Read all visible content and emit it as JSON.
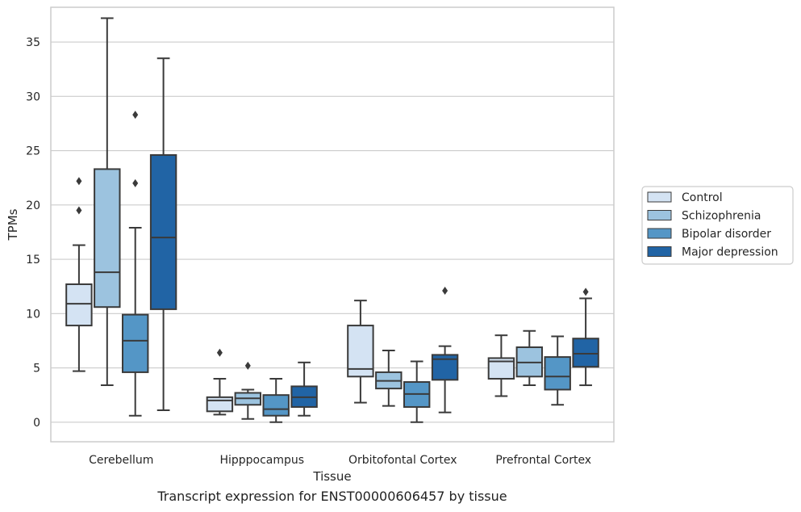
{
  "caption": "Transcript expression for ENST00000606457 by tissue",
  "chart_data": {
    "type": "box",
    "xlabel": "Tissue",
    "ylabel": "TPMs",
    "ylim": [
      -1.8,
      38.2
    ],
    "yticks": [
      0,
      5,
      10,
      15,
      20,
      25,
      30,
      35
    ],
    "grid": "horizontal",
    "legend_position": "right",
    "categories": [
      "Cerebellum",
      "Hipppocampus",
      "Orbitofontal Cortex",
      "Prefrontal Cortex"
    ],
    "series": [
      {
        "name": "Control",
        "color": "#d4e3f3",
        "boxes": [
          {
            "min": 4.7,
            "q1": 8.9,
            "median": 10.9,
            "q3": 12.7,
            "max": 16.3,
            "outliers": [
              19.5,
              22.2
            ]
          },
          {
            "min": 0.7,
            "q1": 1.0,
            "median": 2.0,
            "q3": 2.3,
            "max": 4.0,
            "outliers": [
              6.4
            ]
          },
          {
            "min": 1.8,
            "q1": 4.2,
            "median": 4.9,
            "q3": 8.9,
            "max": 11.2,
            "outliers": []
          },
          {
            "min": 2.4,
            "q1": 4.0,
            "median": 5.6,
            "q3": 5.9,
            "max": 8.0,
            "outliers": []
          }
        ]
      },
      {
        "name": "Schizophrenia",
        "color": "#9cc3df",
        "boxes": [
          {
            "min": 3.4,
            "q1": 10.6,
            "median": 13.8,
            "q3": 23.3,
            "max": 37.2,
            "outliers": []
          },
          {
            "min": 0.3,
            "q1": 1.6,
            "median": 2.2,
            "q3": 2.7,
            "max": 3.0,
            "outliers": [
              5.2
            ]
          },
          {
            "min": 1.5,
            "q1": 3.1,
            "median": 3.8,
            "q3": 4.6,
            "max": 6.6,
            "outliers": []
          },
          {
            "min": 3.4,
            "q1": 4.2,
            "median": 5.5,
            "q3": 6.9,
            "max": 8.4,
            "outliers": []
          }
        ]
      },
      {
        "name": "Bipolar disorder",
        "color": "#5496c6",
        "boxes": [
          {
            "min": 0.6,
            "q1": 4.6,
            "median": 7.5,
            "q3": 9.9,
            "max": 17.9,
            "outliers": [
              22.0,
              28.3
            ]
          },
          {
            "min": 0.0,
            "q1": 0.6,
            "median": 1.2,
            "q3": 2.5,
            "max": 4.0,
            "outliers": []
          },
          {
            "min": 0.0,
            "q1": 1.4,
            "median": 2.6,
            "q3": 3.7,
            "max": 5.6,
            "outliers": []
          },
          {
            "min": 1.6,
            "q1": 3.0,
            "median": 4.2,
            "q3": 6.0,
            "max": 7.9,
            "outliers": []
          }
        ]
      },
      {
        "name": "Major depression",
        "color": "#2164a5",
        "boxes": [
          {
            "min": 1.1,
            "q1": 10.4,
            "median": 17.0,
            "q3": 24.6,
            "max": 33.5,
            "outliers": []
          },
          {
            "min": 0.6,
            "q1": 1.4,
            "median": 2.3,
            "q3": 3.3,
            "max": 5.5,
            "outliers": []
          },
          {
            "min": 0.9,
            "q1": 3.9,
            "median": 5.8,
            "q3": 6.2,
            "max": 7.0,
            "outliers": [
              12.1
            ]
          },
          {
            "min": 3.4,
            "q1": 5.1,
            "median": 6.3,
            "q3": 7.7,
            "max": 11.4,
            "outliers": [
              12.0
            ]
          }
        ]
      }
    ]
  }
}
